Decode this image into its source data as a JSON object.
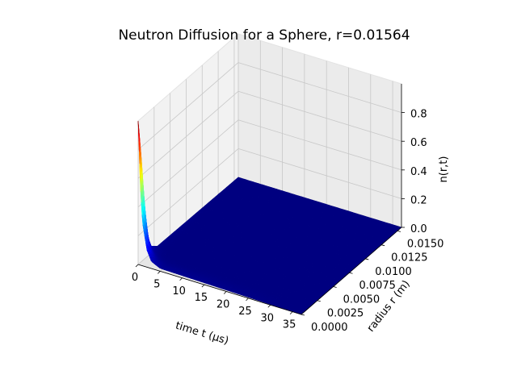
{
  "chart_data": {
    "type": "surface3d",
    "title": "Neutron Diffusion for a Sphere, r=0.01564",
    "xlabel": "time t (μs)",
    "ylabel": "radius r (m)",
    "zlabel": "n(r,t)",
    "x_ticks": [
      "0",
      "5",
      "10",
      "15",
      "20",
      "25",
      "30",
      "35"
    ],
    "y_ticks": [
      "0.0000",
      "0.0025",
      "0.0050",
      "0.0075",
      "0.0100",
      "0.0125",
      "0.0150"
    ],
    "z_ticks": [
      "0.0",
      "0.2",
      "0.4",
      "0.6",
      "0.8"
    ],
    "xlim": [
      0,
      37
    ],
    "ylim": [
      0,
      0.01564
    ],
    "zlim": [
      0,
      1
    ],
    "colormap": "jet",
    "grid": true,
    "peak": {
      "t": 0,
      "r": 0,
      "n": 1.0
    },
    "profile_t0": [
      {
        "r": 0.0,
        "n": 1.0
      },
      {
        "r": 0.0005,
        "n": 0.72
      },
      {
        "r": 0.001,
        "n": 0.38
      },
      {
        "r": 0.0015,
        "n": 0.14
      },
      {
        "r": 0.002,
        "n": 0.05
      },
      {
        "r": 0.003,
        "n": 0.01
      },
      {
        "r": 0.01564,
        "n": 0.0
      }
    ],
    "decay_t": [
      {
        "t": 0,
        "n": 1.0
      },
      {
        "t": 0.5,
        "n": 0.55
      },
      {
        "t": 1,
        "n": 0.3
      },
      {
        "t": 2,
        "n": 0.12
      },
      {
        "t": 3,
        "n": 0.05
      },
      {
        "t": 5,
        "n": 0.02
      },
      {
        "t": 37,
        "n": 0.0
      }
    ]
  }
}
